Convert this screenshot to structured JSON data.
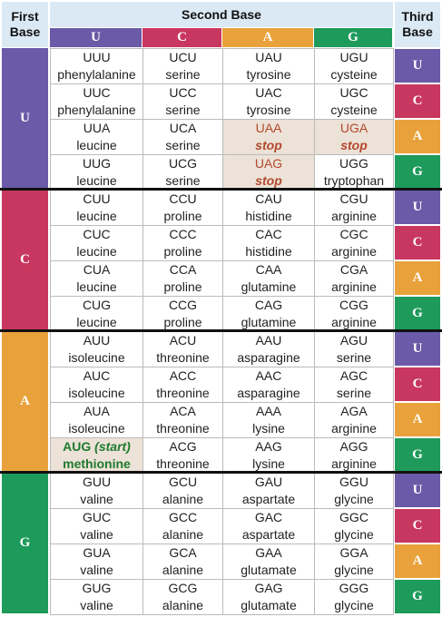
{
  "header": {
    "first_base": "First Base",
    "second_base": "Second Base",
    "third_base": "Third Base"
  },
  "bases": [
    "U",
    "C",
    "A",
    "G"
  ],
  "base_colors": [
    "#6a5aa8",
    "#c8375f",
    "#e9a23b",
    "#1e9a5b"
  ],
  "rows": [
    [
      {
        "codon": "UUU",
        "name": "phenylalanine"
      },
      {
        "codon": "UCU",
        "name": "serine"
      },
      {
        "codon": "UAU",
        "name": "tyrosine"
      },
      {
        "codon": "UGU",
        "name": "cysteine"
      }
    ],
    [
      {
        "codon": "UUC",
        "name": "phenylalanine"
      },
      {
        "codon": "UCC",
        "name": "serine"
      },
      {
        "codon": "UAC",
        "name": "tyrosine"
      },
      {
        "codon": "UGC",
        "name": "cysteine"
      }
    ],
    [
      {
        "codon": "UUA",
        "name": "leucine"
      },
      {
        "codon": "UCA",
        "name": "serine"
      },
      {
        "codon": "UAA",
        "name": "stop",
        "kind": "stop"
      },
      {
        "codon": "UGA",
        "name": "stop",
        "kind": "stop"
      }
    ],
    [
      {
        "codon": "UUG",
        "name": "leucine"
      },
      {
        "codon": "UCG",
        "name": "serine"
      },
      {
        "codon": "UAG",
        "name": "stop",
        "kind": "stop"
      },
      {
        "codon": "UGG",
        "name": "tryptophan"
      }
    ],
    [
      {
        "codon": "CUU",
        "name": "leucine"
      },
      {
        "codon": "CCU",
        "name": "proline"
      },
      {
        "codon": "CAU",
        "name": "histidine"
      },
      {
        "codon": "CGU",
        "name": "arginine"
      }
    ],
    [
      {
        "codon": "CUC",
        "name": "leucine"
      },
      {
        "codon": "CCC",
        "name": "proline"
      },
      {
        "codon": "CAC",
        "name": "histidine"
      },
      {
        "codon": "CGC",
        "name": "arginine"
      }
    ],
    [
      {
        "codon": "CUA",
        "name": "leucine"
      },
      {
        "codon": "CCA",
        "name": "proline"
      },
      {
        "codon": "CAA",
        "name": "glutamine"
      },
      {
        "codon": "CGA",
        "name": "arginine"
      }
    ],
    [
      {
        "codon": "CUG",
        "name": "leucine"
      },
      {
        "codon": "CCG",
        "name": "proline"
      },
      {
        "codon": "CAG",
        "name": "glutamine"
      },
      {
        "codon": "CGG",
        "name": "arginine"
      }
    ],
    [
      {
        "codon": "AUU",
        "name": "isoleucine"
      },
      {
        "codon": "ACU",
        "name": "threonine"
      },
      {
        "codon": "AAU",
        "name": "asparagine"
      },
      {
        "codon": "AGU",
        "name": "serine"
      }
    ],
    [
      {
        "codon": "AUC",
        "name": "isoleucine"
      },
      {
        "codon": "ACC",
        "name": "threonine"
      },
      {
        "codon": "AAC",
        "name": "asparagine"
      },
      {
        "codon": "AGC",
        "name": "serine"
      }
    ],
    [
      {
        "codon": "AUA",
        "name": "isoleucine"
      },
      {
        "codon": "ACA",
        "name": "threonine"
      },
      {
        "codon": "AAA",
        "name": "lysine"
      },
      {
        "codon": "AGA",
        "name": "arginine"
      }
    ],
    [
      {
        "codon": "AUG",
        "tag": "(start)",
        "name": "methionine",
        "kind": "start"
      },
      {
        "codon": "ACG",
        "name": "threonine"
      },
      {
        "codon": "AAG",
        "name": "lysine"
      },
      {
        "codon": "AGG",
        "name": "arginine"
      }
    ],
    [
      {
        "codon": "GUU",
        "name": "valine"
      },
      {
        "codon": "GCU",
        "name": "alanine"
      },
      {
        "codon": "GAU",
        "name": "aspartate"
      },
      {
        "codon": "GGU",
        "name": "glycine"
      }
    ],
    [
      {
        "codon": "GUC",
        "name": "valine"
      },
      {
        "codon": "GCC",
        "name": "alanine"
      },
      {
        "codon": "GAC",
        "name": "aspartate"
      },
      {
        "codon": "GGC",
        "name": "glycine"
      }
    ],
    [
      {
        "codon": "GUA",
        "name": "valine"
      },
      {
        "codon": "GCA",
        "name": "alanine"
      },
      {
        "codon": "GAA",
        "name": "glutamate"
      },
      {
        "codon": "GGA",
        "name": "glycine"
      }
    ],
    [
      {
        "codon": "GUG",
        "name": "valine"
      },
      {
        "codon": "GCG",
        "name": "alanine"
      },
      {
        "codon": "GAG",
        "name": "glutamate"
      },
      {
        "codon": "GGG",
        "name": "glycine"
      }
    ]
  ]
}
